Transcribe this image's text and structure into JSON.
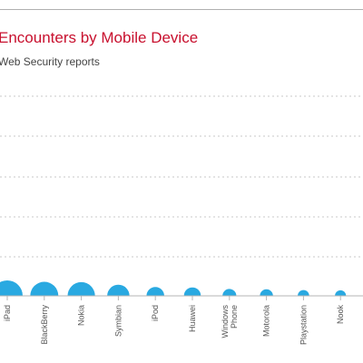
{
  "chart_data": {
    "type": "bubble",
    "title": "Encounters by Mobile Device",
    "subtitle": "Web Security reports",
    "xlabel": "",
    "ylabel": "",
    "grid": true,
    "categories": [
      "iPad",
      "BlackBerry",
      "Nokia",
      "Symbian",
      "iPod",
      "Huawei",
      "Windows Phone",
      "Motorola",
      "Playstation",
      "Nook"
    ],
    "tick_label_lines": [
      [
        "iPad"
      ],
      [
        "BlackBerry"
      ],
      [
        "Nokia"
      ],
      [
        "Symbian"
      ],
      [
        "iPod"
      ],
      [
        "Huawei"
      ],
      [
        "Windows",
        "Phone"
      ],
      [
        "Motorola"
      ],
      [
        "Playstation"
      ],
      [
        "Nook"
      ]
    ],
    "values": [
      100,
      83,
      79,
      52,
      33,
      30,
      20,
      18,
      14,
      13
    ],
    "bubble_color": "#29a9e1",
    "title_color": "#c8102e"
  }
}
